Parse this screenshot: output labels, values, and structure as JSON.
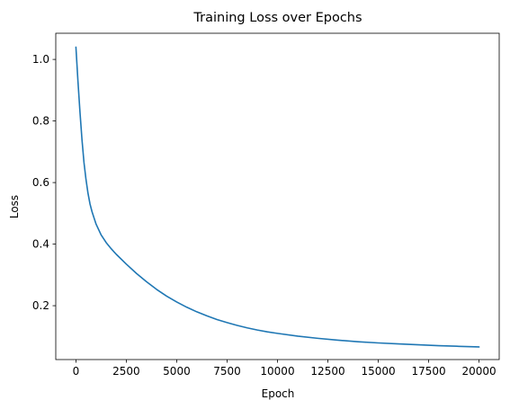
{
  "chart_data": {
    "type": "line",
    "title": "Training Loss over Epochs",
    "xlabel": "Epoch",
    "ylabel": "Loss",
    "xlim": [
      -1000,
      21000
    ],
    "ylim": [
      0.025,
      1.085
    ],
    "xticks": [
      0,
      2500,
      5000,
      7500,
      10000,
      12500,
      15000,
      17500,
      20000
    ],
    "yticks": [
      0.2,
      0.4,
      0.6,
      0.8,
      1.0
    ],
    "xtick_labels": [
      "0",
      "2500",
      "5000",
      "7500",
      "10000",
      "12500",
      "15000",
      "17500",
      "20000"
    ],
    "ytick_labels": [
      "0.2",
      "0.4",
      "0.6",
      "0.8",
      "1.0"
    ],
    "grid": false,
    "legend": "none",
    "series": [
      {
        "color": "#1f77b4",
        "x": [
          0,
          100,
          200,
          300,
          400,
          500,
          600,
          700,
          800,
          900,
          1000,
          1250,
          1500,
          1750,
          2000,
          2500,
          3000,
          3500,
          4000,
          4500,
          5000,
          5500,
          6000,
          6500,
          7000,
          7500,
          8000,
          8500,
          9000,
          9500,
          10000,
          11000,
          12000,
          13000,
          14000,
          15000,
          16000,
          17000,
          18000,
          19000,
          20000
        ],
        "y": [
          1.04,
          0.93,
          0.83,
          0.74,
          0.665,
          0.61,
          0.565,
          0.53,
          0.505,
          0.485,
          0.465,
          0.43,
          0.405,
          0.385,
          0.367,
          0.335,
          0.305,
          0.278,
          0.253,
          0.231,
          0.212,
          0.195,
          0.18,
          0.167,
          0.155,
          0.145,
          0.136,
          0.128,
          0.121,
          0.115,
          0.11,
          0.101,
          0.094,
          0.088,
          0.083,
          0.079,
          0.076,
          0.073,
          0.07,
          0.068,
          0.066
        ]
      }
    ]
  }
}
